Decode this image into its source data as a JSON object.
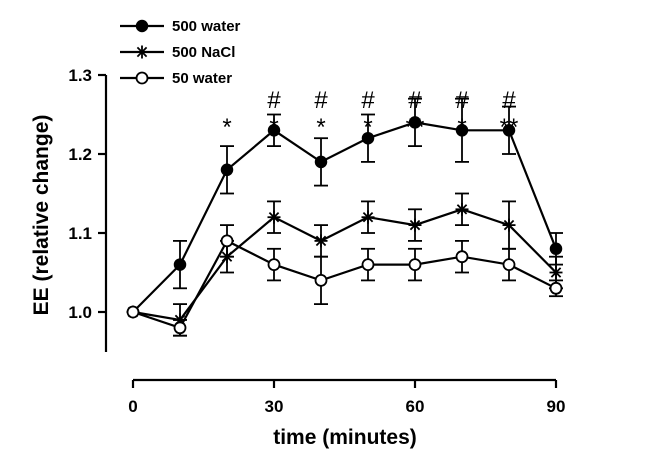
{
  "chart_data": {
    "type": "line",
    "xlabel": "time (minutes)",
    "ylabel": "EE (relative change)",
    "xlim": [
      0,
      90
    ],
    "ylim": [
      0.95,
      1.3
    ],
    "x_ticks": [
      "0",
      "30",
      "60",
      "90"
    ],
    "y_ticks": [
      "1.0",
      "1.1",
      "1.2",
      "1.3"
    ],
    "legend_position": "top-left",
    "grid": false,
    "series": [
      {
        "name": "500 water",
        "marker": "filled-circle",
        "x": [
          0,
          10,
          20,
          30,
          40,
          50,
          60,
          70,
          80,
          90
        ],
        "y": [
          1.0,
          1.06,
          1.18,
          1.23,
          1.19,
          1.22,
          1.24,
          1.23,
          1.23,
          1.08
        ],
        "err": [
          0,
          0.03,
          0.03,
          0.02,
          0.03,
          0.03,
          0.03,
          0.04,
          0.03,
          0.02
        ]
      },
      {
        "name": "500 NaCl",
        "marker": "star",
        "x": [
          0,
          10,
          20,
          30,
          40,
          50,
          60,
          70,
          80,
          90
        ],
        "y": [
          1.0,
          0.99,
          1.07,
          1.12,
          1.09,
          1.12,
          1.11,
          1.13,
          1.11,
          1.05
        ],
        "err": [
          0,
          0.02,
          0.02,
          0.02,
          0.02,
          0.02,
          0.02,
          0.02,
          0.03,
          0.02
        ]
      },
      {
        "name": "50 water",
        "marker": "open-circle",
        "x": [
          0,
          10,
          20,
          30,
          40,
          50,
          60,
          70,
          80,
          90
        ],
        "y": [
          1.0,
          0.98,
          1.09,
          1.06,
          1.04,
          1.06,
          1.06,
          1.07,
          1.06,
          1.03
        ],
        "err": [
          0,
          0.01,
          0.02,
          0.02,
          0.03,
          0.02,
          0.02,
          0.02,
          0.02,
          0.01
        ]
      }
    ],
    "annotations": [
      {
        "x": 20,
        "rows": [
          "*"
        ]
      },
      {
        "x": 30,
        "rows": [
          "#",
          "*"
        ]
      },
      {
        "x": 40,
        "rows": [
          "#",
          "*"
        ]
      },
      {
        "x": 50,
        "rows": [
          "#",
          "*"
        ]
      },
      {
        "x": 60,
        "rows": [
          "#",
          "**"
        ]
      },
      {
        "x": 70,
        "rows": [
          "#",
          "*"
        ]
      },
      {
        "x": 80,
        "rows": [
          "#",
          "**"
        ]
      }
    ]
  }
}
